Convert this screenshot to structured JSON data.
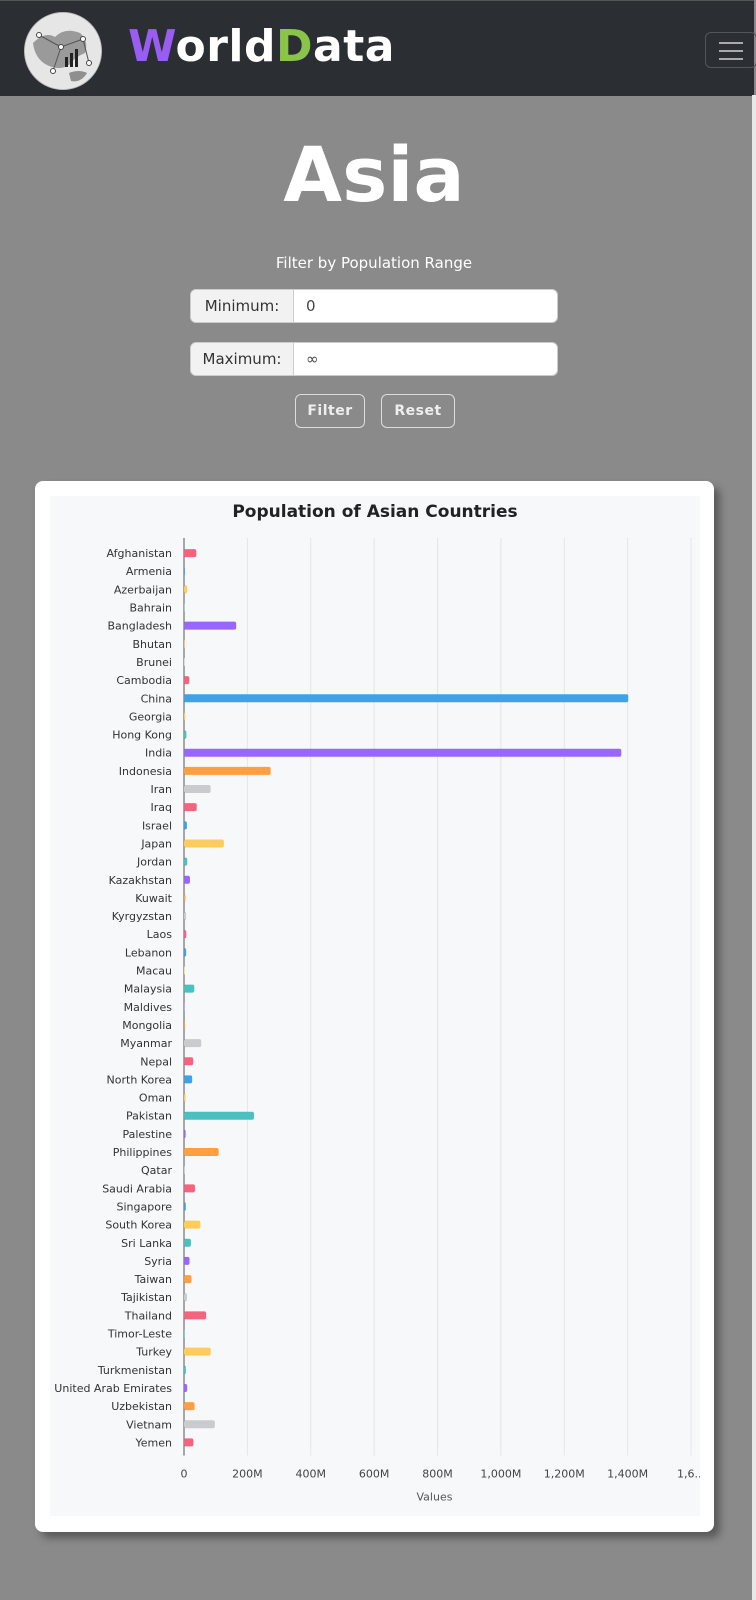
{
  "navbar": {
    "brand_first_letter": "W",
    "brand_mid": "orld",
    "brand_d": "D",
    "brand_end": "ata",
    "logo_icon": "globe-data-logo",
    "menu_icon": "hamburger-icon"
  },
  "page": {
    "title": "Asia",
    "filter_label": "Filter by Population Range",
    "min_label": "Minimum:",
    "min_value": "0",
    "max_label": "Maximum:",
    "max_value": "∞",
    "filter_button": "Filter",
    "reset_button": "Reset"
  },
  "colors": {
    "navbar_bg": "#2b2f33",
    "page_bg": "#8a8a8a",
    "brand_w": "#9a5df2",
    "brand_d": "#8ac44a"
  },
  "chart_data": {
    "type": "bar",
    "orientation": "horizontal",
    "title": "Population of Asian Countries",
    "xlabel": "Values",
    "ylabel": "",
    "xlim": [
      0,
      1600000000
    ],
    "x_tick_labels": [
      "0",
      "200M",
      "400M",
      "600M",
      "800M",
      "1,000M",
      "1,200M",
      "1,400M",
      "1,6..."
    ],
    "grid": true,
    "categories": [
      "Afghanistan",
      "Armenia",
      "Azerbaijan",
      "Bahrain",
      "Bangladesh",
      "Bhutan",
      "Brunei",
      "Cambodia",
      "China",
      "Georgia",
      "Hong Kong",
      "India",
      "Indonesia",
      "Iran",
      "Iraq",
      "Israel",
      "Japan",
      "Jordan",
      "Kazakhstan",
      "Kuwait",
      "Kyrgyzstan",
      "Laos",
      "Lebanon",
      "Macau",
      "Malaysia",
      "Maldives",
      "Mongolia",
      "Myanmar",
      "Nepal",
      "North Korea",
      "Oman",
      "Pakistan",
      "Palestine",
      "Philippines",
      "Qatar",
      "Saudi Arabia",
      "Singapore",
      "South Korea",
      "Sri Lanka",
      "Syria",
      "Taiwan",
      "Tajikistan",
      "Thailand",
      "Timor-Leste",
      "Turkey",
      "Turkmenistan",
      "United Arab Emirates",
      "Uzbekistan",
      "Vietnam",
      "Yemen"
    ],
    "values": [
      38900000,
      2960000,
      10100000,
      1700000,
      164700000,
      770000,
      440000,
      16700000,
      1402000000,
      3700000,
      7500000,
      1380000000,
      273500000,
      84000000,
      40200000,
      9200000,
      125800000,
      10200000,
      18800000,
      4300000,
      6600000,
      7300000,
      6800000,
      650000,
      32400000,
      540000,
      3300000,
      54400000,
      29100000,
      25800000,
      5100000,
      220900000,
      5100000,
      109600000,
      2900000,
      34800000,
      5700000,
      51800000,
      21900000,
      17500000,
      23600000,
      9500000,
      69800000,
      1300000,
      84300000,
      6000000,
      9900000,
      33500000,
      97300000,
      29800000
    ],
    "colors": [
      "#f5647f",
      "#3ea2e5",
      "#fdcc5c",
      "#4bc0c0",
      "#9966ff",
      "#ff9f40",
      "#c9cbcf"
    ]
  }
}
